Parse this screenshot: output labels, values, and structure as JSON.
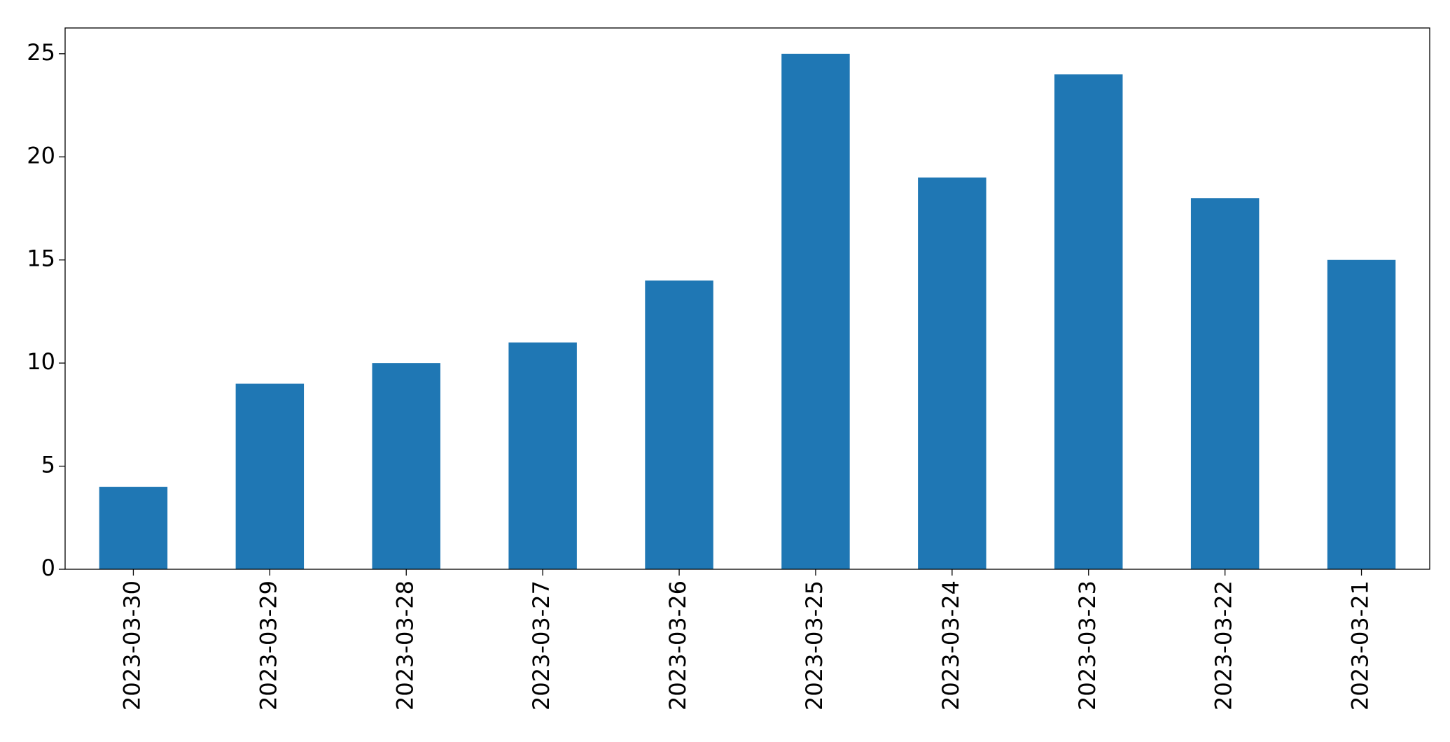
{
  "chart_data": {
    "type": "bar",
    "categories": [
      "2023-03-30",
      "2023-03-29",
      "2023-03-28",
      "2023-03-27",
      "2023-03-26",
      "2023-03-25",
      "2023-03-24",
      "2023-03-23",
      "2023-03-22",
      "2023-03-21"
    ],
    "values": [
      4,
      9,
      10,
      11,
      14,
      25,
      19,
      24,
      18,
      15
    ],
    "color": "#1f77b4",
    "ylim": [
      0,
      26.25
    ],
    "yticks": [
      0,
      5,
      10,
      15,
      20,
      25
    ],
    "grid": false
  }
}
